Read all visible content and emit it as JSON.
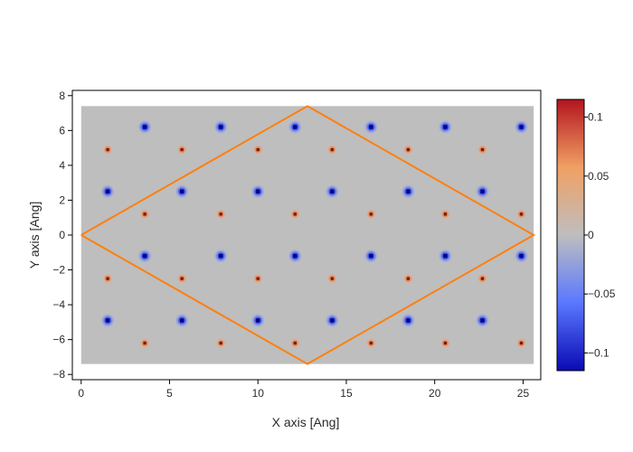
{
  "chart_data": {
    "type": "heatmap",
    "title": "",
    "xlabel": "X axis [Ang]",
    "ylabel": "Y axis [Ang]",
    "xlim": [
      -0.5,
      26
    ],
    "ylim": [
      -8.3,
      8.3
    ],
    "x_ticks": [
      0,
      5,
      10,
      15,
      20,
      25
    ],
    "y_ticks": [
      -8,
      -6,
      -4,
      -2,
      0,
      2,
      4,
      6,
      8
    ],
    "grid": false,
    "background_value": 0,
    "heatmap_extent": {
      "x": [
        0,
        25.6
      ],
      "y": [
        -7.4,
        7.4
      ]
    },
    "colorbar": {
      "range": [
        -0.115,
        0.115
      ],
      "ticks": [
        {
          "value": 0.1,
          "label": "0.1"
        },
        {
          "value": 0.05,
          "label": "0.05"
        },
        {
          "value": 0,
          "label": "0"
        },
        {
          "value": -0.05,
          "label": "−0.05"
        },
        {
          "value": -0.1,
          "label": "−0.1"
        }
      ],
      "colors": [
        "#0a0ab4",
        "#5a78ff",
        "#bebebe",
        "#f0a064",
        "#b4141e"
      ]
    },
    "cell_outline": {
      "color": "#ff7f0e",
      "points": [
        [
          0,
          0
        ],
        [
          12.8,
          7.4
        ],
        [
          25.6,
          0
        ],
        [
          12.8,
          -7.4
        ],
        [
          0,
          0
        ]
      ]
    },
    "negative_sites": {
      "value": -0.1,
      "points": [
        [
          3.6,
          6.2
        ],
        [
          7.9,
          6.2
        ],
        [
          12.1,
          6.2
        ],
        [
          16.4,
          6.2
        ],
        [
          20.6,
          6.2
        ],
        [
          24.9,
          6.2
        ],
        [
          1.5,
          2.5
        ],
        [
          5.7,
          2.5
        ],
        [
          10.0,
          2.5
        ],
        [
          14.2,
          2.5
        ],
        [
          18.5,
          2.5
        ],
        [
          22.7,
          2.5
        ],
        [
          3.6,
          -1.2
        ],
        [
          7.9,
          -1.2
        ],
        [
          12.1,
          -1.2
        ],
        [
          16.4,
          -1.2
        ],
        [
          20.6,
          -1.2
        ],
        [
          24.9,
          -1.2
        ],
        [
          1.5,
          -4.9
        ],
        [
          5.7,
          -4.9
        ],
        [
          10.0,
          -4.9
        ],
        [
          14.2,
          -4.9
        ],
        [
          18.5,
          -4.9
        ],
        [
          22.7,
          -4.9
        ]
      ]
    },
    "positive_sites": {
      "value": 0.06,
      "points": [
        [
          1.5,
          4.9
        ],
        [
          5.7,
          4.9
        ],
        [
          10.0,
          4.9
        ],
        [
          14.2,
          4.9
        ],
        [
          18.5,
          4.9
        ],
        [
          22.7,
          4.9
        ],
        [
          3.6,
          1.2
        ],
        [
          7.9,
          1.2
        ],
        [
          12.1,
          1.2
        ],
        [
          16.4,
          1.2
        ],
        [
          20.6,
          1.2
        ],
        [
          24.9,
          1.2
        ],
        [
          1.5,
          -2.5
        ],
        [
          5.7,
          -2.5
        ],
        [
          10.0,
          -2.5
        ],
        [
          14.2,
          -2.5
        ],
        [
          18.5,
          -2.5
        ],
        [
          22.7,
          -2.5
        ],
        [
          3.6,
          -6.2
        ],
        [
          7.9,
          -6.2
        ],
        [
          12.1,
          -6.2
        ],
        [
          16.4,
          -6.2
        ],
        [
          20.6,
          -6.2
        ],
        [
          24.9,
          -6.2
        ]
      ]
    }
  }
}
